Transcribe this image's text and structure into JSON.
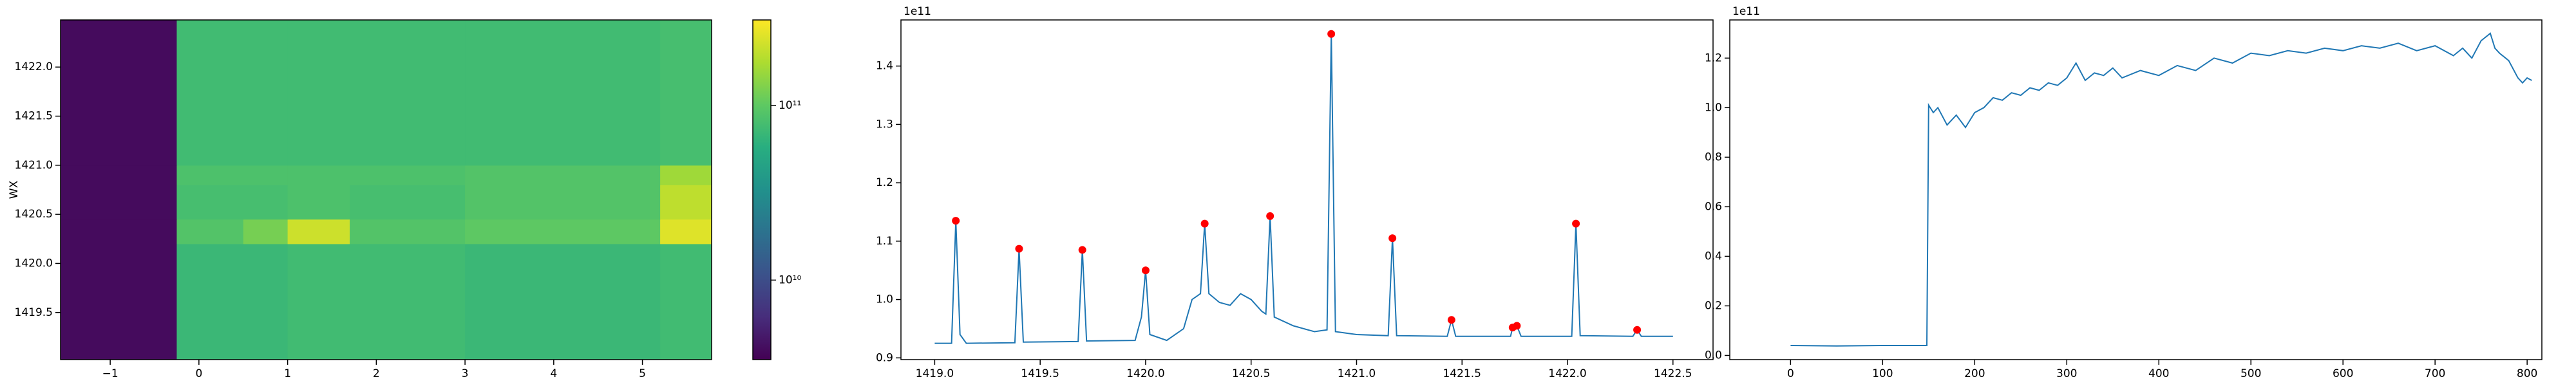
{
  "chart_data": [
    {
      "type": "heatmap",
      "ylabel": "WX",
      "colormap": "viridis",
      "color_scale": "log",
      "x_edges": [
        -1.56,
        -0.25,
        0.5,
        1.0,
        1.7,
        3,
        5.2,
        5.78
      ],
      "y_edges": [
        1419.02,
        1420.2,
        1420.45,
        1420.8,
        1421.0,
        1422.48
      ],
      "z": [
        [
          4000000000.0,
          70000000000.0,
          70000000000.0,
          75000000000.0,
          75000000000.0,
          70000000000.0,
          75000000000.0
        ],
        [
          4000000000.0,
          90000000000.0,
          120000000000.0,
          220000000000.0,
          90000000000.0,
          100000000000.0,
          250000000000.0
        ],
        [
          4000000000.0,
          80000000000.0,
          80000000000.0,
          85000000000.0,
          80000000000.0,
          90000000000.0,
          200000000000.0
        ],
        [
          4000000000.0,
          85000000000.0,
          85000000000.0,
          85000000000.0,
          85000000000.0,
          90000000000.0,
          160000000000.0
        ],
        [
          4000000000.0,
          75000000000.0,
          75000000000.0,
          75000000000.0,
          75000000000.0,
          75000000000.0,
          80000000000.0
        ]
      ],
      "xlim": [
        -1.56,
        5.78
      ],
      "ylim": [
        1419.02,
        1422.48
      ],
      "xticks": [
        {
          "value": -1,
          "label": "−1"
        },
        0,
        1,
        2,
        3,
        4,
        5
      ],
      "yticks": [
        1419.5,
        {
          "value": 1420,
          "label": "1420.0"
        },
        1420.5,
        {
          "value": 1421,
          "label": "1421.0"
        },
        1421.5,
        {
          "value": 1422,
          "label": "1422.0"
        }
      ],
      "clim": [
        3500000000.0,
        310000000000.0
      ],
      "cticks": [
        {
          "value": 10000000000.0,
          "label": "10¹⁰"
        },
        {
          "value": 100000000000.0,
          "label": "10¹¹"
        }
      ]
    },
    {
      "type": "line",
      "offset_text": "1e11",
      "xlim": [
        1418.84,
        1422.69
      ],
      "ylim": [
        0.897,
        1.479
      ],
      "xticks": [
        {
          "value": 1419,
          "label": "1419.0"
        },
        1419.5,
        {
          "value": 1420,
          "label": "1420.0"
        },
        1420.5,
        {
          "value": 1421,
          "label": "1421.0"
        },
        1421.5,
        {
          "value": 1422,
          "label": "1422.0"
        },
        1422.5
      ],
      "yticks": [
        0.9,
        {
          "value": 1,
          "label": "1.0"
        },
        1.1,
        1.2,
        1.3,
        1.4
      ],
      "series": [
        {
          "kind": "line",
          "color": "#1f77b4",
          "x": [
            1419.0,
            1419.08,
            1419.1,
            1419.12,
            1419.15,
            1419.38,
            1419.4,
            1419.42,
            1419.68,
            1419.7,
            1419.72,
            1419.95,
            1419.98,
            1420.0,
            1420.02,
            1420.1,
            1420.18,
            1420.22,
            1420.26,
            1420.28,
            1420.3,
            1420.35,
            1420.4,
            1420.45,
            1420.5,
            1420.55,
            1420.57,
            1420.59,
            1420.61,
            1420.7,
            1420.8,
            1420.86,
            1420.88,
            1420.9,
            1421.0,
            1421.15,
            1421.17,
            1421.19,
            1421.43,
            1421.45,
            1421.47,
            1421.73,
            1421.74,
            1421.76,
            1421.78,
            1422.02,
            1422.04,
            1422.06,
            1422.31,
            1422.33,
            1422.35,
            1422.5
          ],
          "values": [
            0.925,
            0.925,
            1.135,
            0.94,
            0.925,
            0.926,
            1.087,
            0.927,
            0.928,
            1.085,
            0.929,
            0.93,
            0.97,
            1.05,
            0.94,
            0.93,
            0.95,
            1.0,
            1.01,
            1.13,
            1.01,
            0.995,
            0.99,
            1.01,
            1.0,
            0.98,
            0.975,
            1.143,
            0.97,
            0.955,
            0.945,
            0.948,
            1.455,
            0.945,
            0.94,
            0.938,
            1.105,
            0.938,
            0.937,
            0.965,
            0.937,
            0.937,
            0.952,
            0.955,
            0.937,
            0.937,
            1.13,
            0.938,
            0.937,
            0.948,
            0.937,
            0.937
          ]
        },
        {
          "kind": "scatter",
          "color": "#ff0000",
          "x": [
            1419.1,
            1419.4,
            1419.7,
            1420.0,
            1420.28,
            1420.59,
            1420.88,
            1421.17,
            1421.45,
            1421.74,
            1421.76,
            1422.04,
            1422.33
          ],
          "values": [
            1.135,
            1.087,
            1.085,
            1.05,
            1.13,
            1.143,
            1.455,
            1.105,
            0.965,
            0.952,
            0.955,
            1.13,
            0.948
          ]
        }
      ]
    },
    {
      "type": "line",
      "offset_text": "1e11",
      "xlim": [
        -66,
        816
      ],
      "ylim": [
        -0.017,
        1.354
      ],
      "xticks": [
        0,
        100,
        200,
        300,
        400,
        500,
        600,
        700,
        800
      ],
      "yticks": [
        {
          "value": 0,
          "label": "0.0"
        },
        0.2,
        0.4,
        0.6,
        0.8,
        {
          "value": 1,
          "label": "1.0"
        },
        1.2
      ],
      "series": [
        {
          "kind": "line",
          "color": "#1f77b4",
          "x": [
            0,
            50,
            100,
            145,
            148,
            150,
            155,
            160,
            170,
            180,
            190,
            200,
            210,
            220,
            230,
            240,
            250,
            260,
            270,
            280,
            290,
            300,
            310,
            320,
            330,
            340,
            350,
            360,
            380,
            400,
            420,
            440,
            460,
            480,
            500,
            520,
            540,
            560,
            580,
            600,
            620,
            640,
            660,
            680,
            700,
            720,
            730,
            740,
            750,
            760,
            765,
            770,
            780,
            790,
            795,
            800,
            805
          ],
          "values": [
            0.04,
            0.038,
            0.04,
            0.04,
            0.04,
            1.01,
            0.98,
            1.0,
            0.93,
            0.97,
            0.92,
            0.98,
            1.0,
            1.04,
            1.03,
            1.06,
            1.05,
            1.08,
            1.07,
            1.1,
            1.09,
            1.12,
            1.18,
            1.11,
            1.14,
            1.13,
            1.16,
            1.12,
            1.15,
            1.13,
            1.17,
            1.15,
            1.2,
            1.18,
            1.22,
            1.21,
            1.23,
            1.22,
            1.24,
            1.23,
            1.25,
            1.24,
            1.26,
            1.23,
            1.25,
            1.21,
            1.24,
            1.2,
            1.27,
            1.3,
            1.24,
            1.22,
            1.19,
            1.12,
            1.1,
            1.12,
            1.11
          ]
        }
      ]
    }
  ]
}
